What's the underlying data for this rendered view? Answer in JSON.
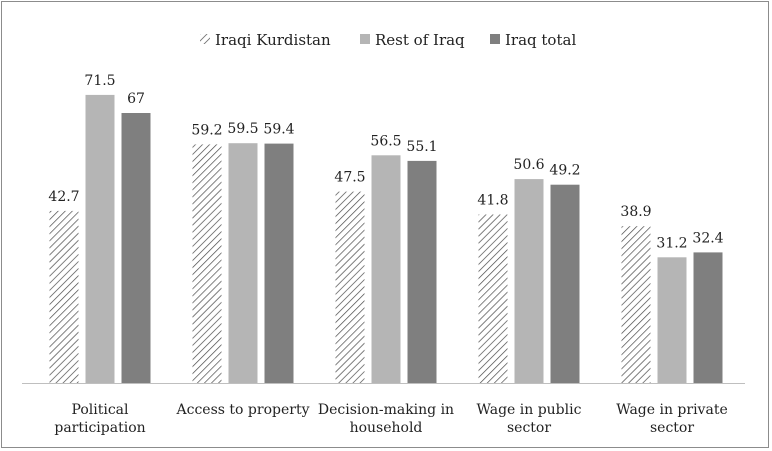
{
  "chart_data": {
    "type": "bar",
    "categories": [
      [
        "Political",
        "participation"
      ],
      [
        "Access to property"
      ],
      [
        "Decision-making in",
        "household"
      ],
      [
        "Wage in public",
        "sector"
      ],
      [
        "Wage in private",
        "sector"
      ]
    ],
    "series": [
      {
        "name": "Iraqi Kurdistan",
        "values": [
          42.7,
          59.2,
          47.5,
          41.8,
          38.9
        ],
        "labels": [
          "42.7",
          "59.2",
          "47.5",
          "41.8",
          "38.9"
        ],
        "fill": "hatch",
        "color": "#555555"
      },
      {
        "name": "Rest of Iraq",
        "values": [
          71.5,
          59.5,
          56.5,
          50.6,
          31.2
        ],
        "labels": [
          "71.5",
          "59.5",
          "56.5",
          "50.6",
          "31.2"
        ],
        "fill": "solid",
        "color": "#b5b5b5"
      },
      {
        "name": "Iraq total",
        "values": [
          67,
          59.4,
          55.1,
          49.2,
          32.4
        ],
        "labels": [
          "67",
          "59.4",
          "55.1",
          "49.2",
          "32.4"
        ],
        "fill": "solid",
        "color": "#7f7f7f"
      }
    ],
    "ylim": [
      0,
      100
    ],
    "grid": false,
    "legend": "top-center",
    "title": "",
    "xlabel": "",
    "ylabel": ""
  }
}
